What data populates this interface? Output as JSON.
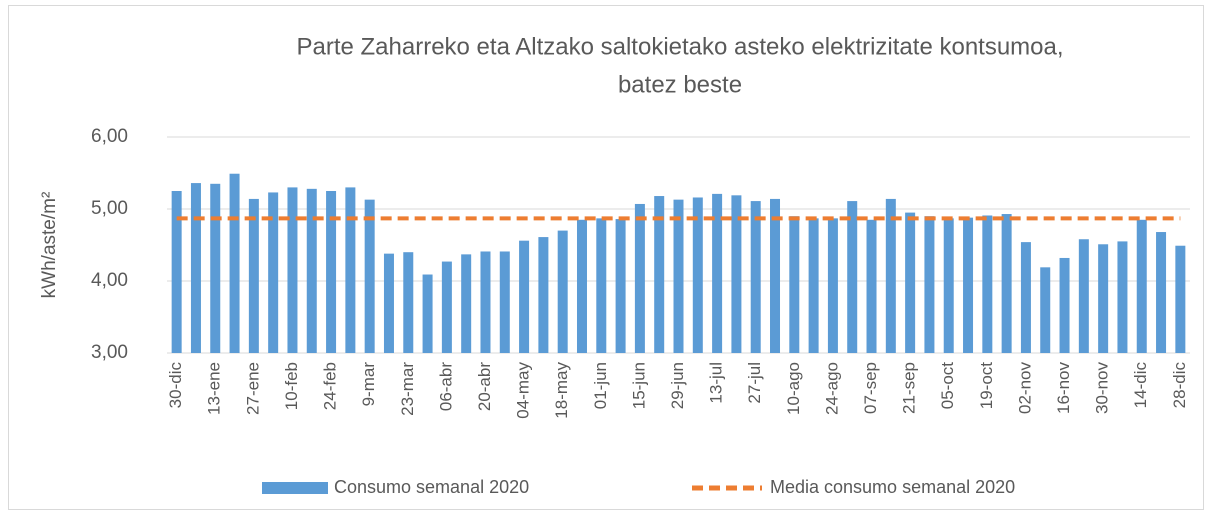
{
  "chart_data": {
    "type": "bar",
    "title": [
      "Parte Zaharreko eta Altzako saltokietako asteko elektrizitate kontsumoa,",
      "batez beste"
    ],
    "y_label": "kWh/aste/m²",
    "categories": [
      "30-dic",
      null,
      "13-ene",
      null,
      "27-ene",
      null,
      "10-feb",
      null,
      "24-feb",
      null,
      "9-mar",
      null,
      "23-mar",
      null,
      "06-abr",
      null,
      "20-abr",
      null,
      "04-may",
      null,
      "18-may",
      null,
      "01-jun",
      null,
      "15-jun",
      null,
      "29-jun",
      null,
      "13-jul",
      null,
      "27-jul",
      null,
      "10-ago",
      null,
      "24-ago",
      null,
      "07-sep",
      null,
      "21-sep",
      null,
      "05-oct",
      null,
      "19-oct",
      null,
      "02-nov",
      null,
      "16-nov",
      null,
      "30-nov",
      null,
      "14-dic",
      null,
      "28-dic"
    ],
    "series": [
      {
        "name": "Consumo semanal 2020",
        "type": "bar",
        "color": "#5b9bd5",
        "values": [
          5.25,
          5.36,
          5.35,
          5.49,
          5.14,
          5.23,
          5.3,
          5.28,
          5.25,
          5.3,
          5.13,
          4.38,
          4.4,
          4.09,
          4.27,
          4.37,
          4.41,
          4.41,
          4.56,
          4.61,
          4.7,
          4.85,
          4.87,
          4.86,
          5.07,
          5.18,
          5.13,
          5.16,
          5.21,
          5.19,
          5.11,
          5.14,
          4.9,
          4.87,
          4.87,
          5.11,
          4.85,
          5.14,
          4.95,
          4.9,
          4.87,
          4.88,
          4.91,
          4.93,
          4.54,
          4.19,
          4.32,
          4.58,
          4.51,
          4.55,
          4.85,
          4.68,
          4.49
        ]
      },
      {
        "name": "Media consumo semanal 2020",
        "type": "line",
        "color": "#ed7d31",
        "dashed": true,
        "values": [
          4.87,
          4.87,
          4.87,
          4.87,
          4.87,
          4.87,
          4.87,
          4.87,
          4.87,
          4.87,
          4.87,
          4.87,
          4.87,
          4.87,
          4.87,
          4.87,
          4.87,
          4.87,
          4.87,
          4.87,
          4.87,
          4.87,
          4.87,
          4.87,
          4.87,
          4.87,
          4.87,
          4.87,
          4.87,
          4.87,
          4.87,
          4.87,
          4.87,
          4.87,
          4.87,
          4.87,
          4.87,
          4.87,
          4.87,
          4.87,
          4.87,
          4.87,
          4.87,
          4.87,
          4.87,
          4.87,
          4.87,
          4.87,
          4.87,
          4.87,
          4.87,
          4.87,
          4.87
        ]
      }
    ],
    "ylim": [
      3,
      6
    ],
    "yticks": [
      {
        "value": 3,
        "label": "3,00"
      },
      {
        "value": 4,
        "label": "4,00"
      },
      {
        "value": 5,
        "label": "5,00"
      },
      {
        "value": 6,
        "label": "6,00"
      }
    ],
    "grid": true,
    "legend": "bottom"
  }
}
